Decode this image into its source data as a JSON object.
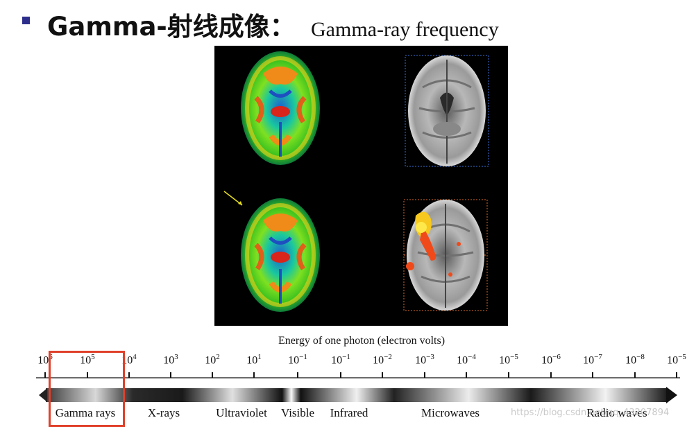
{
  "slide": {
    "title": "Gamma-射线成像：",
    "caption": "Gamma-ray frequency"
  },
  "spectrum": {
    "axis_title": "Energy of one photon (electron volts)",
    "ticks": [
      {
        "base": "10",
        "exp": "6"
      },
      {
        "base": "10",
        "exp": "5"
      },
      {
        "base": "10",
        "exp": "4"
      },
      {
        "base": "10",
        "exp": "3"
      },
      {
        "base": "10",
        "exp": "2"
      },
      {
        "base": "10",
        "exp": "1"
      },
      {
        "base": "10",
        "exp": "−1"
      },
      {
        "base": "10",
        "exp": "−1"
      },
      {
        "base": "10",
        "exp": "−2"
      },
      {
        "base": "10",
        "exp": "−3"
      },
      {
        "base": "10",
        "exp": "−4"
      },
      {
        "base": "10",
        "exp": "−5"
      },
      {
        "base": "10",
        "exp": "−6"
      },
      {
        "base": "10",
        "exp": "−7"
      },
      {
        "base": "10",
        "exp": "−8"
      },
      {
        "base": "10",
        "exp": "−5"
      }
    ],
    "bands": [
      "Gamma rays",
      "X-rays",
      "Ultraviolet",
      "Visible",
      "Infrared",
      "Microwaves",
      "Radio waves"
    ],
    "highlight_color": "#e0402a"
  },
  "watermark": "https://blog.csdn.net/qq_43207894"
}
